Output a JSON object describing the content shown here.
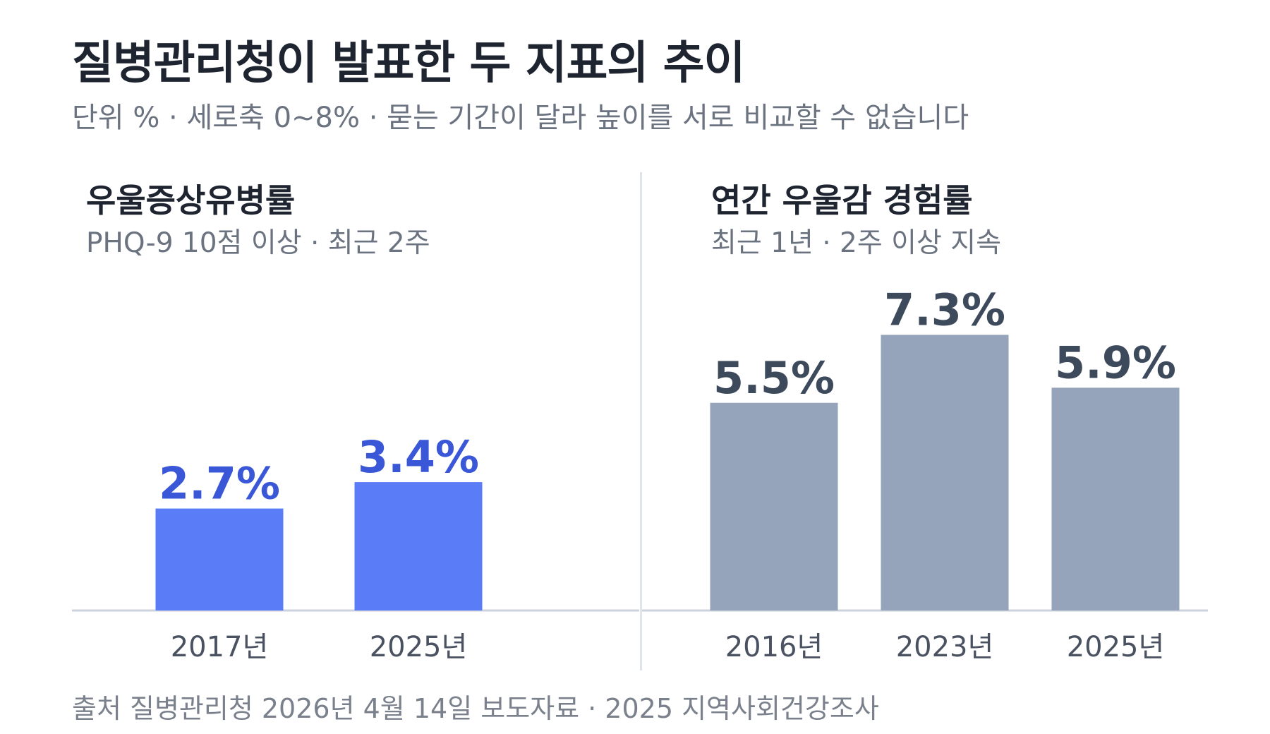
{
  "title": "질병관리청이 발표한 두 지표의 추이",
  "subtitle": "단위 % · 세로축 0~8% · 묻는 기간이 달라 높이를 서로 비교할 수 없습니다",
  "source": "출처 질병관리청 2026년 4월 14일 보도자료 · 2025 지역사회건강조사",
  "colors": {
    "left_bar": "#5b7cf7",
    "left_label": "#3a57d8",
    "right_bar": "#95a4ba",
    "right_label": "#3d4a5c",
    "axis": "#cdd3de",
    "tick_text": "#4a5261"
  },
  "panels": {
    "left": {
      "title": "우울증상유병률",
      "subtitle": "PHQ-9 10점 이상 · 최근 2주"
    },
    "right": {
      "title": "연간 우울감 경험률",
      "subtitle": "최근 1년 · 2주 이상 지속"
    }
  },
  "chart_data": [
    {
      "type": "bar",
      "title": "우울증상유병률",
      "subtitle": "PHQ-9 10점 이상 · 최근 2주",
      "categories": [
        "2017년",
        "2025년"
      ],
      "values": [
        2.7,
        3.4
      ],
      "data_labels": [
        "2.7%",
        "3.4%"
      ],
      "unit": "%",
      "ylim": [
        0,
        8
      ],
      "grid": false,
      "legend": "none"
    },
    {
      "type": "bar",
      "title": "연간 우울감 경험률",
      "subtitle": "최근 1년 · 2주 이상 지속",
      "categories": [
        "2016년",
        "2023년",
        "2025년"
      ],
      "values": [
        5.5,
        7.3,
        5.9
      ],
      "data_labels": [
        "5.5%",
        "7.3%",
        "5.9%"
      ],
      "unit": "%",
      "ylim": [
        0,
        8
      ],
      "grid": false,
      "legend": "none"
    }
  ]
}
